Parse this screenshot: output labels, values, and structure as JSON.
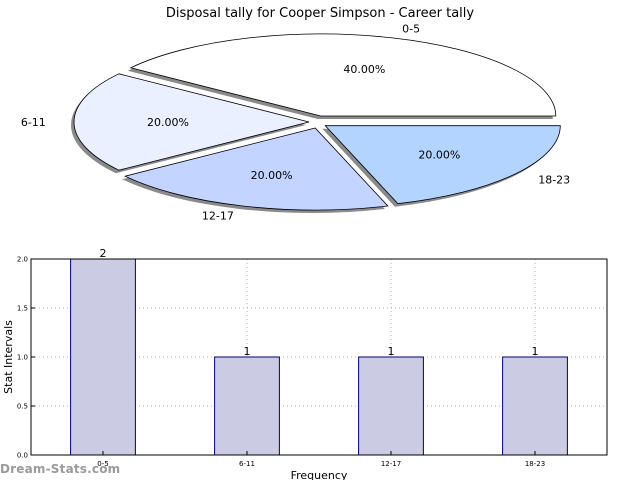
{
  "title": "Disposal tally for Cooper Simpson - Career tally",
  "watermark": "Dream-Stats.com",
  "colors": {
    "pie": [
      "#ffffff",
      "#eaf0ff",
      "#c2d4ff",
      "#b3d4ff"
    ],
    "bar_fill": "#cbcbe4",
    "bar_edge": "#00007f",
    "shadow": "#8a8a8a",
    "grid": "#b0b0b0"
  },
  "chart_data": [
    {
      "type": "pie",
      "title": "Disposal tally for Cooper Simpson - Career tally",
      "categories": [
        "0-5",
        "6-11",
        "12-17",
        "18-23"
      ],
      "values": [
        40.0,
        20.0,
        20.0,
        20.0
      ],
      "labels_pct": [
        "40.00%",
        "20.00%",
        "20.00%",
        "20.00%"
      ]
    },
    {
      "type": "bar",
      "categories": [
        "0-5",
        "6-11",
        "12-17",
        "18-23"
      ],
      "values": [
        2,
        1,
        1,
        1
      ],
      "value_labels": [
        "2",
        "1",
        "1",
        "1"
      ],
      "xlabel": "Frequency",
      "ylabel": "Stat Intervals",
      "ylim": [
        0,
        2.0
      ],
      "yticks": [
        "0.0",
        "0.5",
        "1.0",
        "1.5",
        "2.0"
      ],
      "grid": true
    }
  ]
}
